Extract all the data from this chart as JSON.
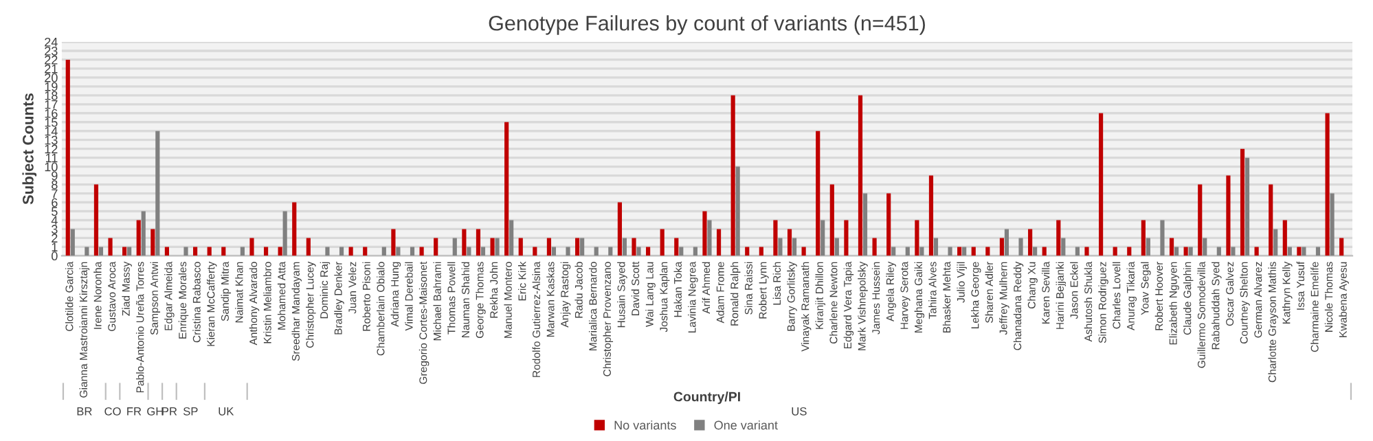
{
  "chart_data": {
    "type": "bar",
    "title": "Genotype Failures by count of variants (n=451)",
    "xlabel": "Country/PI",
    "ylabel": "Subject Counts",
    "categories": [
      "Clotilde Garcia",
      "Gianna Mastroianni Kirsztajn",
      "Irene Noronha",
      "Gustavo Aroca",
      "Ziad Massy",
      "Pablo-Antonio Ureña Torres",
      "Sampson Antwi",
      "Edgar Almeida",
      "Enrique Morales",
      "Cristina Rabasco",
      "Kieran McCafferty",
      "Sandip Mitra",
      "Naimat Khan",
      "Anthony Alvarado",
      "Kristin Meliambro",
      "Mohamed Atta",
      "Sreedhar Mandayam",
      "Christopher Lucey",
      "Dominic Raj",
      "Bradley Denker",
      "Juan Velez",
      "Roberto Pisoni",
      "Chamberlain Obialo",
      "Adriana Hung",
      "Vimal Derebail",
      "Gregorio Cortes-Maisonet",
      "Michael Bahrami",
      "Thomas Powell",
      "Nauman Shahid",
      "George Thomas",
      "Rekha John",
      "Manuel Montero",
      "Eric Kirk",
      "Rodolfo Gutierrez-Alsina",
      "Marwan Kaskas",
      "Anjay Rastogi",
      "Radu Jacob",
      "Marialica Bernardo",
      "Christopher Provenzano",
      "Husain Sayed",
      "David Scott",
      "Wai Lang Lau",
      "Joshua Kaplan",
      "Hakan Toka",
      "Lavinia Negrea",
      "Arif Ahmed",
      "Adam Frome",
      "Ronald Ralph",
      "Sina Raissi",
      "Robert Lynn",
      "Lisa Rich",
      "Barry Gorlitsky",
      "Vinayak Ramanath",
      "Kiranjit Dhillon",
      "Charlene Newton",
      "Edgard Vera Tapia",
      "Mark Vishnepolsky",
      "James Hussein",
      "Angela Riley",
      "Harvey Serota",
      "Meghana Gaiki",
      "Tahira Alves",
      "Bhasker Mehta",
      "Julio Vijil",
      "Lekha George",
      "Sharen Adler",
      "Jeffrey Mulhern",
      "Chanadana Reddy",
      "Chang Xu",
      "Karen Sevilla",
      "Harini Bejjanki",
      "Jason Eckel",
      "Ashutosh Shukla",
      "Simon Rodriguez",
      "Charles Lovell",
      "Anurag Tikaria",
      "Yoav Segal",
      "Robert Hoover",
      "Elizabeth Nguyen",
      "Claude Galphin",
      "Guillermo Somodevilla",
      "Rabahuddah Syed",
      "Oscar Galvez",
      "Courtney Shelton",
      "German Alvarez",
      "Charlotte Grayson Mathis",
      "Kathryn Kelly",
      "Issa Yusuf",
      "Charmaine Emelife",
      "Nicole Thomas",
      "Kwabena Ayesu"
    ],
    "series": [
      {
        "name": "No variants",
        "color": "#c00000",
        "values": [
          22,
          0,
          8,
          2,
          1,
          4,
          3,
          1,
          0,
          1,
          1,
          1,
          0,
          2,
          1,
          1,
          6,
          2,
          0,
          0,
          1,
          1,
          0,
          3,
          0,
          1,
          2,
          0,
          3,
          3,
          2,
          15,
          2,
          1,
          2,
          0,
          2,
          0,
          0,
          6,
          2,
          1,
          3,
          2,
          0,
          5,
          3,
          18,
          1,
          1,
          4,
          3,
          1,
          14,
          8,
          4,
          18,
          2,
          7,
          0,
          4,
          9,
          0,
          1,
          1,
          1,
          2,
          0,
          3,
          1,
          4,
          0,
          1,
          16,
          1,
          1,
          4,
          0,
          2,
          1,
          8,
          0,
          9,
          12,
          1,
          8,
          4,
          1,
          0,
          16,
          2
        ]
      },
      {
        "name": "One variant",
        "color": "#808080",
        "values": [
          3,
          1,
          1,
          0,
          1,
          5,
          14,
          0,
          1,
          0,
          0,
          0,
          1,
          0,
          0,
          5,
          0,
          0,
          1,
          1,
          0,
          0,
          1,
          1,
          1,
          0,
          0,
          2,
          1,
          1,
          2,
          4,
          0,
          0,
          1,
          1,
          2,
          1,
          1,
          2,
          1,
          0,
          0,
          1,
          1,
          4,
          0,
          10,
          0,
          0,
          2,
          2,
          0,
          4,
          2,
          0,
          7,
          0,
          1,
          1,
          1,
          2,
          1,
          1,
          0,
          0,
          3,
          2,
          1,
          0,
          2,
          1,
          0,
          0,
          0,
          0,
          2,
          4,
          1,
          1,
          2,
          1,
          1,
          11,
          0,
          3,
          1,
          1,
          1,
          7,
          0
        ]
      }
    ],
    "annotations": [
      "BR",
      "CO",
      "FR",
      "GH",
      "PR",
      "SP",
      "UK",
      "US"
    ],
    "ylim": [
      0,
      24
    ],
    "yticks": [
      0,
      1,
      2,
      3,
      4,
      5,
      6,
      7,
      8,
      9,
      10,
      11,
      12,
      13,
      14,
      15,
      16,
      17,
      18,
      19,
      20,
      21,
      22,
      23,
      24
    ],
    "grid": "y",
    "legend": "bottom"
  }
}
